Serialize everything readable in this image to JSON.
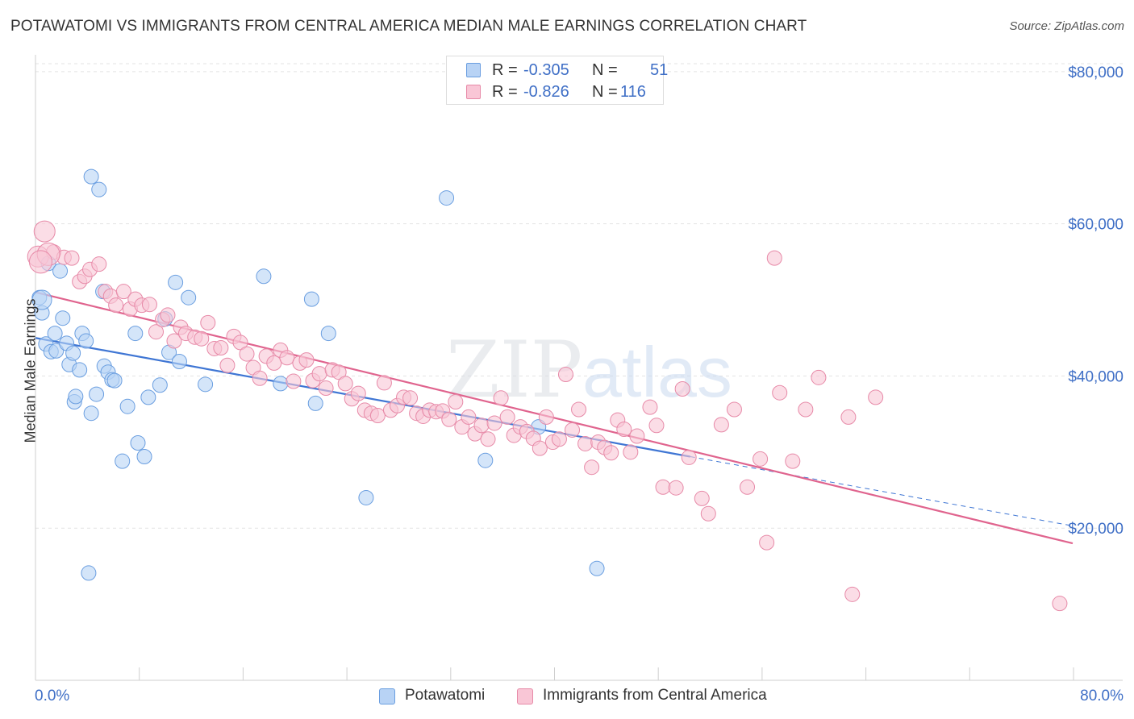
{
  "title": "POTAWATOMI VS IMMIGRANTS FROM CENTRAL AMERICA MEDIAN MALE EARNINGS CORRELATION CHART",
  "source": "Source: ZipAtlas.com",
  "watermark": {
    "part1": "ZIP",
    "part2": "atlas"
  },
  "stats": [
    {
      "r_label": "R =",
      "r_value": "-0.305",
      "n_label": "N =",
      "n_value": "51",
      "fill": "#b8d3f5",
      "stroke": "#6a9ee0"
    },
    {
      "r_label": "R =",
      "r_value": "-0.826",
      "n_label": "N =",
      "n_value": "116",
      "fill": "#f9c6d6",
      "stroke": "#e78aa8"
    }
  ],
  "legend": [
    {
      "label": "Potawatomi",
      "fill": "#b8d3f5",
      "stroke": "#6a9ee0"
    },
    {
      "label": "Immigrants from Central America",
      "fill": "#f9c6d6",
      "stroke": "#e78aa8"
    }
  ],
  "chart_data": {
    "type": "scatter",
    "ylabel": "Median Male Earnings",
    "xlim": [
      0,
      80
    ],
    "ylim": [
      0,
      82000
    ],
    "x_tick_labels": [
      "0.0%",
      "80.0%"
    ],
    "y_ticks": [
      20000,
      40000,
      60000,
      80000
    ],
    "y_tick_labels": [
      "$20,000",
      "$40,000",
      "$60,000",
      "$80,000"
    ],
    "grid": true,
    "series": [
      {
        "name": "Potawatomi",
        "color": "#3f76d4",
        "fill": "#b8d3f5",
        "stroke": "#6a9ee0",
        "trend": {
          "x0": 0,
          "y0": 45000,
          "x1": 50.5,
          "y1": 29400,
          "dash_to_x": 80,
          "dash_to_y": 20300
        },
        "points": [
          [
            0.3,
            50300
          ],
          [
            0.5,
            48300
          ],
          [
            0.8,
            44200
          ],
          [
            1.0,
            54800
          ],
          [
            1.2,
            43200
          ],
          [
            1.5,
            45600
          ],
          [
            1.6,
            43300
          ],
          [
            1.9,
            53800
          ],
          [
            2.1,
            47600
          ],
          [
            2.4,
            44300
          ],
          [
            2.6,
            41500
          ],
          [
            2.9,
            43000
          ],
          [
            3.0,
            36600
          ],
          [
            3.1,
            37300
          ],
          [
            3.4,
            40800
          ],
          [
            3.6,
            45600
          ],
          [
            3.9,
            44600
          ],
          [
            4.3,
            35100
          ],
          [
            4.7,
            37600
          ],
          [
            4.3,
            66200
          ],
          [
            4.9,
            64500
          ],
          [
            5.2,
            51100
          ],
          [
            5.3,
            41300
          ],
          [
            5.6,
            40500
          ],
          [
            5.9,
            39500
          ],
          [
            6.1,
            39400
          ],
          [
            6.7,
            28800
          ],
          [
            7.1,
            36000
          ],
          [
            7.7,
            45600
          ],
          [
            7.9,
            31200
          ],
          [
            8.4,
            29400
          ],
          [
            8.7,
            37200
          ],
          [
            9.6,
            38800
          ],
          [
            10.0,
            47500
          ],
          [
            10.3,
            43100
          ],
          [
            10.8,
            52300
          ],
          [
            11.1,
            41900
          ],
          [
            11.8,
            50300
          ],
          [
            13.1,
            38900
          ],
          [
            17.6,
            53100
          ],
          [
            18.9,
            39000
          ],
          [
            21.3,
            50100
          ],
          [
            21.6,
            36400
          ],
          [
            22.6,
            45600
          ],
          [
            25.5,
            24000
          ],
          [
            31.7,
            63400
          ],
          [
            34.7,
            28900
          ],
          [
            38.8,
            33300
          ],
          [
            43.3,
            14700
          ],
          [
            4.1,
            14100
          ],
          [
            0.5,
            50000
          ]
        ]
      },
      {
        "name": "Immigrants from Central America",
        "color": "#e0648e",
        "fill": "#f9c6d6",
        "stroke": "#e78aa8",
        "trend": {
          "x0": 0,
          "y0": 51000,
          "x1": 80,
          "y1": 18000
        },
        "points": [
          [
            0.2,
            55700
          ],
          [
            0.7,
            59000
          ],
          [
            1.4,
            56300
          ],
          [
            2.2,
            55600
          ],
          [
            2.8,
            55500
          ],
          [
            3.4,
            52400
          ],
          [
            3.8,
            53100
          ],
          [
            4.2,
            54000
          ],
          [
            4.9,
            54700
          ],
          [
            5.4,
            51100
          ],
          [
            5.8,
            50500
          ],
          [
            6.2,
            49300
          ],
          [
            6.8,
            51100
          ],
          [
            7.3,
            48800
          ],
          [
            7.7,
            50100
          ],
          [
            8.2,
            49300
          ],
          [
            8.8,
            49400
          ],
          [
            9.3,
            45800
          ],
          [
            9.8,
            47400
          ],
          [
            10.2,
            48000
          ],
          [
            10.7,
            44600
          ],
          [
            11.2,
            46400
          ],
          [
            11.6,
            45600
          ],
          [
            12.3,
            45100
          ],
          [
            12.8,
            44900
          ],
          [
            13.3,
            47000
          ],
          [
            13.8,
            43600
          ],
          [
            14.3,
            43700
          ],
          [
            14.8,
            41400
          ],
          [
            15.3,
            45200
          ],
          [
            15.8,
            44400
          ],
          [
            16.3,
            42900
          ],
          [
            16.8,
            41100
          ],
          [
            17.3,
            39700
          ],
          [
            17.8,
            42600
          ],
          [
            18.4,
            41700
          ],
          [
            18.9,
            43400
          ],
          [
            19.4,
            42400
          ],
          [
            19.9,
            39300
          ],
          [
            20.4,
            41700
          ],
          [
            20.9,
            42100
          ],
          [
            21.4,
            39400
          ],
          [
            21.9,
            40300
          ],
          [
            22.4,
            38400
          ],
          [
            22.9,
            40800
          ],
          [
            23.4,
            40500
          ],
          [
            23.9,
            39000
          ],
          [
            24.4,
            37000
          ],
          [
            24.9,
            37700
          ],
          [
            25.4,
            35500
          ],
          [
            25.9,
            35100
          ],
          [
            26.4,
            34800
          ],
          [
            26.9,
            39100
          ],
          [
            27.4,
            35500
          ],
          [
            27.9,
            36100
          ],
          [
            28.4,
            37200
          ],
          [
            28.9,
            37100
          ],
          [
            29.4,
            35100
          ],
          [
            29.9,
            34700
          ],
          [
            30.4,
            35500
          ],
          [
            30.9,
            35300
          ],
          [
            31.4,
            35400
          ],
          [
            31.9,
            34300
          ],
          [
            32.4,
            36600
          ],
          [
            32.9,
            33300
          ],
          [
            33.4,
            34600
          ],
          [
            33.9,
            32400
          ],
          [
            34.4,
            33500
          ],
          [
            34.9,
            31700
          ],
          [
            35.4,
            33800
          ],
          [
            35.9,
            37100
          ],
          [
            36.4,
            34600
          ],
          [
            36.9,
            32200
          ],
          [
            37.4,
            33300
          ],
          [
            37.9,
            32700
          ],
          [
            38.4,
            31800
          ],
          [
            38.9,
            30500
          ],
          [
            39.4,
            34600
          ],
          [
            39.9,
            31300
          ],
          [
            40.4,
            31700
          ],
          [
            40.9,
            40200
          ],
          [
            41.4,
            32900
          ],
          [
            41.9,
            35600
          ],
          [
            42.4,
            31100
          ],
          [
            42.9,
            28000
          ],
          [
            43.4,
            31300
          ],
          [
            43.9,
            30600
          ],
          [
            44.4,
            29900
          ],
          [
            44.9,
            34200
          ],
          [
            45.4,
            33000
          ],
          [
            45.9,
            30000
          ],
          [
            46.4,
            32100
          ],
          [
            47.4,
            35900
          ],
          [
            47.9,
            33500
          ],
          [
            48.4,
            25400
          ],
          [
            49.4,
            25300
          ],
          [
            49.9,
            38300
          ],
          [
            50.4,
            29300
          ],
          [
            51.4,
            23900
          ],
          [
            51.9,
            21900
          ],
          [
            52.9,
            33600
          ],
          [
            53.9,
            35600
          ],
          [
            54.9,
            25400
          ],
          [
            55.9,
            29100
          ],
          [
            56.4,
            18100
          ],
          [
            57.0,
            55500
          ],
          [
            57.4,
            37800
          ],
          [
            58.4,
            28800
          ],
          [
            59.4,
            35600
          ],
          [
            60.4,
            39800
          ],
          [
            62.7,
            34600
          ],
          [
            63.0,
            11300
          ],
          [
            64.8,
            37200
          ],
          [
            79.0,
            10100
          ],
          [
            1.0,
            56000
          ],
          [
            0.4,
            55000
          ]
        ]
      }
    ]
  }
}
